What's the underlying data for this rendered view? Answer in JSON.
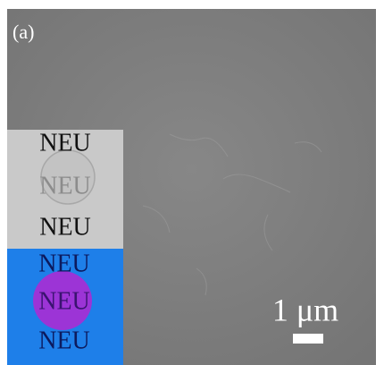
{
  "panel_label": "(a)",
  "inset": {
    "top_labels": [
      "NEU",
      "NEU",
      "NEU"
    ],
    "bottom_labels": [
      "NEU",
      "NEU",
      "NEU"
    ]
  },
  "scale_bar": {
    "label": "1 μm"
  }
}
